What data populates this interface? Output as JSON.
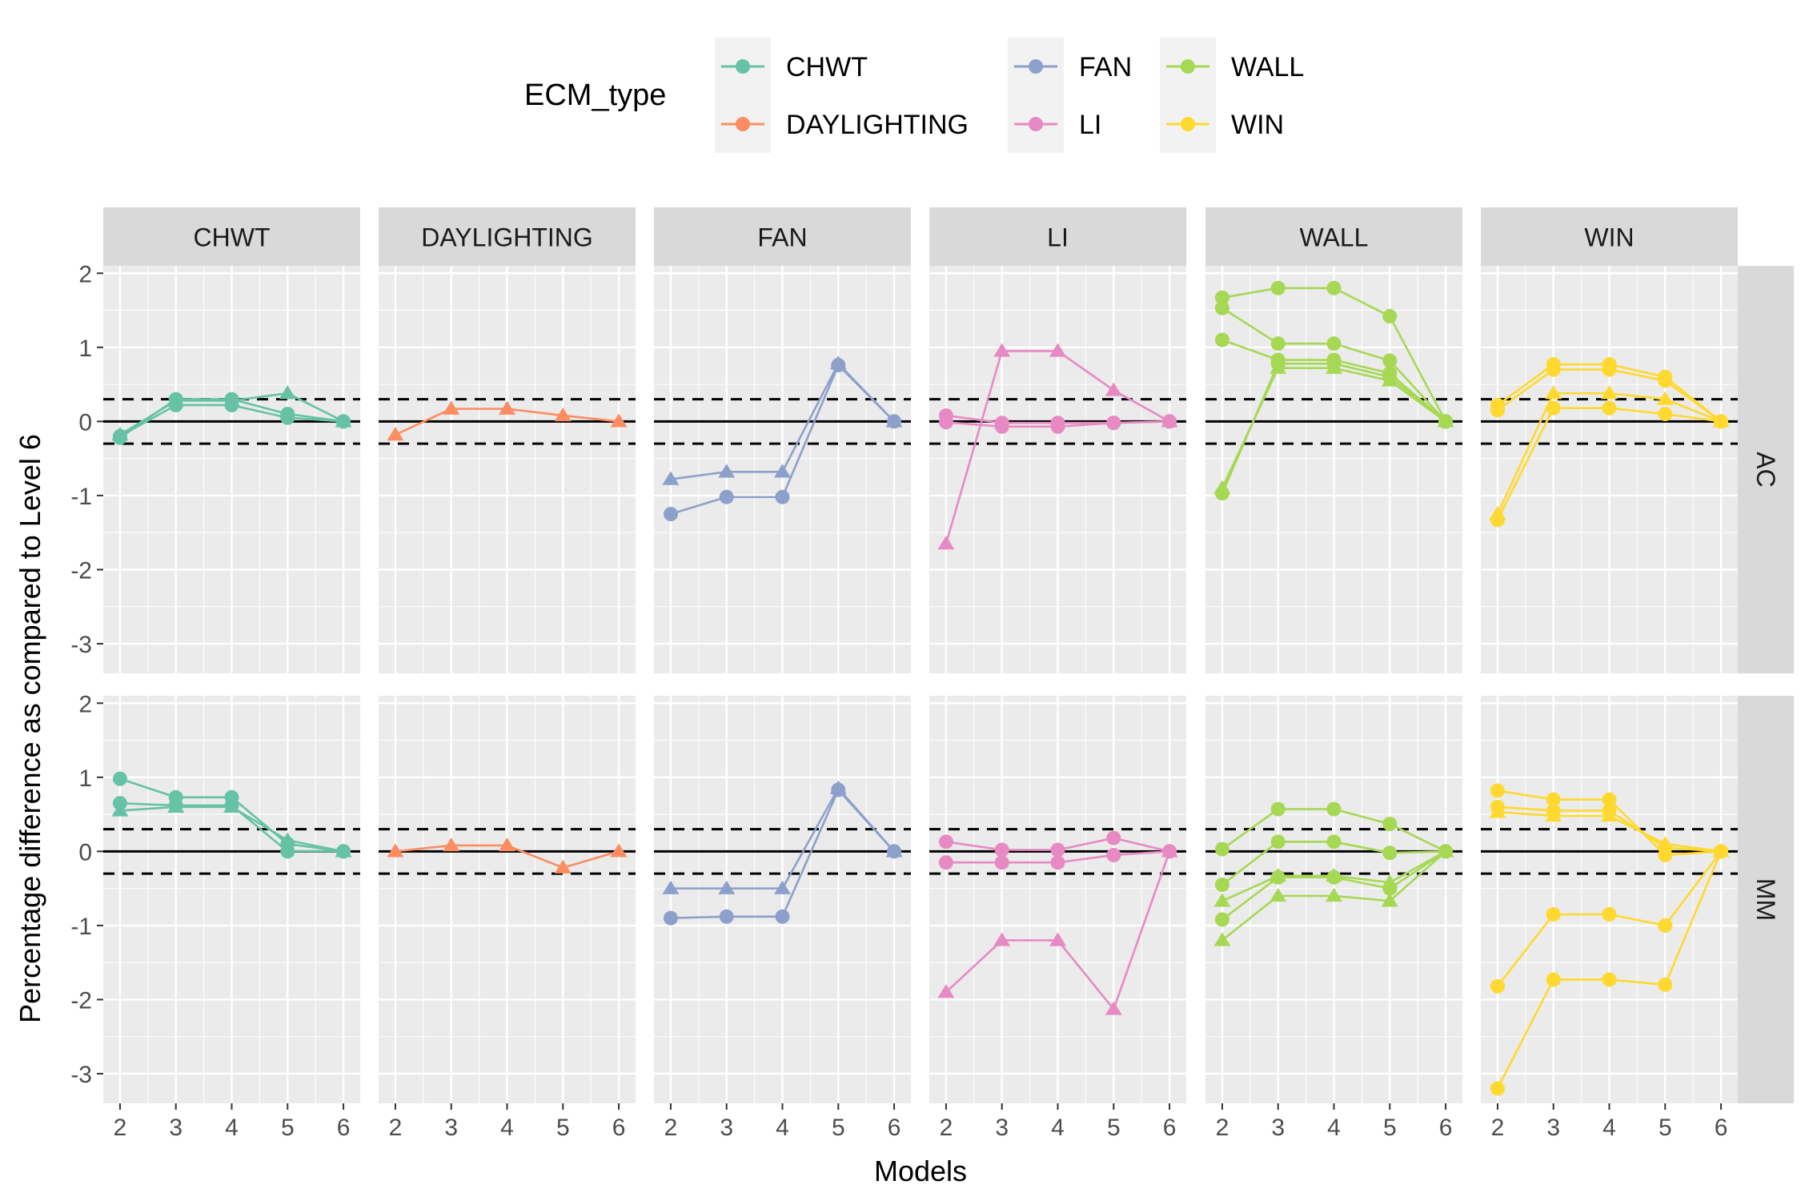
{
  "chart_data": {
    "type": "line",
    "facet_rows": [
      "AC",
      "MM"
    ],
    "facet_cols": [
      "CHWT",
      "DAYLIGHTING",
      "FAN",
      "LI",
      "WALL",
      "WIN"
    ],
    "x": [
      2,
      3,
      4,
      5,
      6
    ],
    "xlabel": "Models",
    "ylabel": "Percentage difference as compared to Level 6",
    "yticks": [
      -3,
      -2,
      -1,
      0,
      1,
      2
    ],
    "ylim": [
      -3.4,
      2.1
    ],
    "xlim": [
      1.7,
      6.3
    ],
    "grid": true,
    "hlines": [
      {
        "y": 0,
        "style": "solid"
      },
      {
        "y": 0.3,
        "style": "dashed"
      },
      {
        "y": -0.3,
        "style": "dashed"
      }
    ],
    "legend": {
      "title": "ECM_type",
      "position": "top",
      "entries": [
        {
          "label": "CHWT",
          "color": "#66C2A5"
        },
        {
          "label": "DAYLIGHTING",
          "color": "#FC8D62"
        },
        {
          "label": "FAN",
          "color": "#8DA0CB"
        },
        {
          "label": "LI",
          "color": "#E78AC3"
        },
        {
          "label": "WALL",
          "color": "#A6D854"
        },
        {
          "label": "WIN",
          "color": "#FFD92F"
        }
      ]
    },
    "panels": [
      {
        "row": "AC",
        "col": "CHWT",
        "color": "#66C2A5",
        "series": [
          {
            "marker": "circle",
            "values": [
              -0.22,
              0.3,
              0.3,
              0.1,
              0
            ]
          },
          {
            "marker": "circle",
            "values": [
              -0.2,
              0.22,
              0.22,
              0.05,
              0
            ]
          },
          {
            "marker": "triangle",
            "values": [
              -0.18,
              0.28,
              0.28,
              0.38,
              0
            ]
          }
        ]
      },
      {
        "row": "AC",
        "col": "DAYLIGHTING",
        "color": "#FC8D62",
        "series": [
          {
            "marker": "triangle",
            "values": [
              -0.18,
              0.17,
              0.17,
              0.08,
              0
            ]
          }
        ]
      },
      {
        "row": "AC",
        "col": "FAN",
        "color": "#8DA0CB",
        "series": [
          {
            "marker": "triangle",
            "values": [
              -0.78,
              -0.68,
              -0.68,
              0.78,
              0
            ]
          },
          {
            "marker": "circle",
            "values": [
              -1.25,
              -1.02,
              -1.02,
              0.76,
              0
            ]
          }
        ]
      },
      {
        "row": "AC",
        "col": "LI",
        "color": "#E78AC3",
        "series": [
          {
            "marker": "triangle",
            "values": [
              -1.65,
              0.95,
              0.95,
              0.42,
              0
            ]
          },
          {
            "marker": "circle",
            "values": [
              0.08,
              -0.02,
              -0.02,
              -0.02,
              0
            ]
          },
          {
            "marker": "circle",
            "values": [
              -0.01,
              -0.07,
              -0.07,
              -0.02,
              0
            ]
          }
        ]
      },
      {
        "row": "AC",
        "col": "WALL",
        "color": "#A6D854",
        "series": [
          {
            "marker": "circle",
            "values": [
              1.67,
              1.8,
              1.8,
              1.42,
              0
            ]
          },
          {
            "marker": "circle",
            "values": [
              1.53,
              1.05,
              1.05,
              0.82,
              0
            ]
          },
          {
            "marker": "circle",
            "values": [
              1.1,
              0.83,
              0.83,
              0.65,
              0
            ]
          },
          {
            "marker": "triangle",
            "values": [
              -0.9,
              0.72,
              0.72,
              0.55,
              0
            ]
          },
          {
            "marker": "circle",
            "values": [
              -0.97,
              0.78,
              0.78,
              0.6,
              0
            ]
          }
        ]
      },
      {
        "row": "AC",
        "col": "WIN",
        "color": "#FFD92F",
        "series": [
          {
            "marker": "circle",
            "values": [
              0.22,
              0.77,
              0.77,
              0.6,
              0
            ]
          },
          {
            "marker": "circle",
            "values": [
              0.15,
              0.7,
              0.7,
              0.55,
              0
            ]
          },
          {
            "marker": "triangle",
            "values": [
              -1.25,
              0.38,
              0.38,
              0.3,
              0
            ]
          },
          {
            "marker": "circle",
            "values": [
              -1.33,
              0.18,
              0.18,
              0.1,
              0
            ]
          }
        ]
      },
      {
        "row": "MM",
        "col": "CHWT",
        "color": "#66C2A5",
        "series": [
          {
            "marker": "circle",
            "values": [
              0.98,
              0.73,
              0.73,
              0.1,
              0
            ]
          },
          {
            "marker": "circle",
            "values": [
              0.65,
              0.62,
              0.62,
              0,
              0
            ]
          },
          {
            "marker": "triangle",
            "values": [
              0.55,
              0.6,
              0.6,
              0.15,
              0
            ]
          }
        ]
      },
      {
        "row": "MM",
        "col": "DAYLIGHTING",
        "color": "#FC8D62",
        "series": [
          {
            "marker": "triangle",
            "values": [
              0,
              0.08,
              0.08,
              -0.22,
              0
            ]
          }
        ]
      },
      {
        "row": "MM",
        "col": "FAN",
        "color": "#8DA0CB",
        "series": [
          {
            "marker": "triangle",
            "values": [
              -0.5,
              -0.5,
              -0.5,
              0.85,
              0
            ]
          },
          {
            "marker": "circle",
            "values": [
              -0.9,
              -0.88,
              -0.88,
              0.83,
              0
            ]
          }
        ]
      },
      {
        "row": "MM",
        "col": "LI",
        "color": "#E78AC3",
        "series": [
          {
            "marker": "circle",
            "values": [
              0.13,
              0.02,
              0.02,
              0.18,
              0
            ]
          },
          {
            "marker": "circle",
            "values": [
              -0.15,
              -0.15,
              -0.15,
              -0.05,
              0
            ]
          },
          {
            "marker": "triangle",
            "values": [
              -1.9,
              -1.2,
              -1.2,
              -2.13,
              0
            ]
          }
        ]
      },
      {
        "row": "MM",
        "col": "WALL",
        "color": "#A6D854",
        "series": [
          {
            "marker": "circle",
            "values": [
              0.03,
              0.57,
              0.57,
              0.37,
              0
            ]
          },
          {
            "marker": "circle",
            "values": [
              -0.45,
              0.13,
              0.13,
              -0.02,
              0
            ]
          },
          {
            "marker": "triangle",
            "values": [
              -0.67,
              -0.33,
              -0.33,
              -0.42,
              0
            ]
          },
          {
            "marker": "circle",
            "values": [
              -0.92,
              -0.35,
              -0.35,
              -0.5,
              0
            ]
          },
          {
            "marker": "triangle",
            "values": [
              -1.2,
              -0.6,
              -0.6,
              -0.67,
              0
            ]
          }
        ]
      },
      {
        "row": "MM",
        "col": "WIN",
        "color": "#FFD92F",
        "series": [
          {
            "marker": "circle",
            "values": [
              0.82,
              0.7,
              0.7,
              -0.05,
              0
            ]
          },
          {
            "marker": "circle",
            "values": [
              0.6,
              0.55,
              0.55,
              0.05,
              0
            ]
          },
          {
            "marker": "triangle",
            "values": [
              0.53,
              0.48,
              0.48,
              0.1,
              0
            ]
          },
          {
            "marker": "circle",
            "values": [
              -1.82,
              -0.85,
              -0.85,
              -1.0,
              0
            ]
          },
          {
            "marker": "circle",
            "values": [
              -3.2,
              -1.73,
              -1.73,
              -1.8,
              0
            ]
          }
        ]
      }
    ]
  }
}
